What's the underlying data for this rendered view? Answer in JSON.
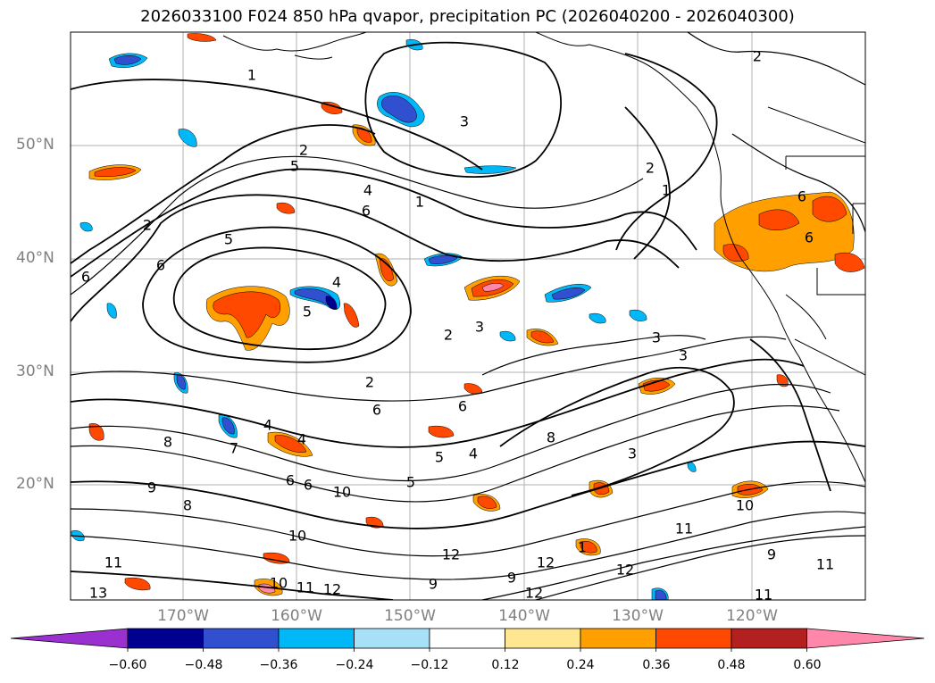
{
  "title": "2026033100 F024 850 hPa qvapor, precipitation PC (2026040200 - 2026040300)",
  "lat_labels": [
    "50°N",
    "40°N",
    "30°N",
    "20°N"
  ],
  "lon_labels": [
    "170°W",
    "160°W",
    "150°W",
    "140°W",
    "130°W",
    "120°W"
  ],
  "colorbar": {
    "ticks": [
      "−0.60",
      "−0.48",
      "−0.36",
      "−0.24",
      "−0.12",
      "0.12",
      "0.24",
      "0.36",
      "0.48",
      "0.60"
    ],
    "colors": [
      "#9b30d0",
      "#000090",
      "#3050d0",
      "#00b8f8",
      "#a8e0f8",
      "#ffffff",
      "#ffe690",
      "#ffa000",
      "#ff4800",
      "#b22020",
      "#ff88aa"
    ]
  },
  "contour_labels": [
    "1",
    "2",
    "2",
    "3",
    "1",
    "5",
    "6",
    "4",
    "1",
    "2",
    "6",
    "5",
    "6",
    "4",
    "5",
    "2",
    "3",
    "3",
    "3",
    "2",
    "6",
    "6",
    "4",
    "4",
    "8",
    "7",
    "9",
    "8",
    "6",
    "6",
    "10",
    "5",
    "4",
    "5",
    "3",
    "8",
    "10",
    "11",
    "12",
    "13",
    "10",
    "11",
    "12",
    "9",
    "12",
    "9",
    "12",
    "10",
    "11",
    "12",
    "9",
    "11",
    "11",
    "6",
    "6",
    "2",
    "1"
  ]
}
